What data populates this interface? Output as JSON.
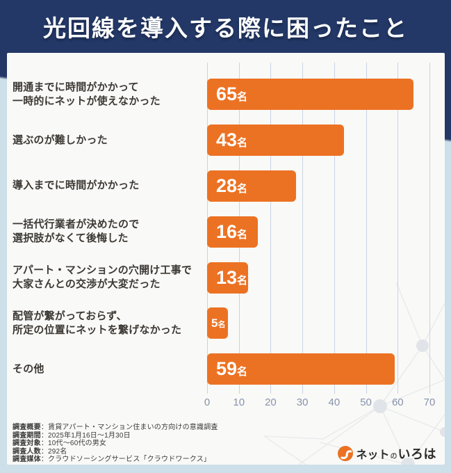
{
  "title": "光回線を導入する際に困ったこと",
  "chart_data": {
    "type": "bar",
    "orientation": "horizontal",
    "title": "光回線を導入する際に困ったこと",
    "categories": [
      "開通までに時間がかかって\n一時的にネットが使えなかった",
      "選ぶのが難しかった",
      "導入までに時間がかかった",
      "一括代行業者が決めたので\n選択肢がなくて後悔した",
      "アパート・マンションの穴開け工事で\n大家さんとの交渉が大変だった",
      "配管が繋がっておらず、\n所定の位置にネットを繋げなかった",
      "その他"
    ],
    "values": [
      65,
      43,
      28,
      16,
      13,
      5,
      59
    ],
    "value_suffix": "名",
    "xlim": [
      0,
      70
    ],
    "x_ticks": [
      0,
      10,
      20,
      30,
      40,
      50,
      60,
      70
    ],
    "grid": true,
    "legend": false,
    "bar_color": "#ec7223"
  },
  "footer": {
    "separator": "：",
    "lines": [
      {
        "label": "調査概要",
        "value": "賃貸アパート・マンション住まいの方向けの意識調査"
      },
      {
        "label": "調査期間",
        "value": "2025年1月16日～1月30日"
      },
      {
        "label": "調査対象",
        "value": "10代～60代の男女"
      },
      {
        "label": "調査人数",
        "value": "292名"
      },
      {
        "label": "調査媒体",
        "value": "クラウドソーシングサービス「クラウドワークス」"
      }
    ]
  },
  "logo": {
    "icon": "iroha-swirl-icon",
    "part1": "ネット",
    "part2": "の",
    "part3": "いろは"
  },
  "colors": {
    "navy": "#233867",
    "orange": "#ec7223",
    "pale_blue": "#cddfe9",
    "gridline": "#c9d3e4",
    "tick_text": "#8593ab",
    "label_text": "#3d3935",
    "bar_text": "#ffffff"
  }
}
